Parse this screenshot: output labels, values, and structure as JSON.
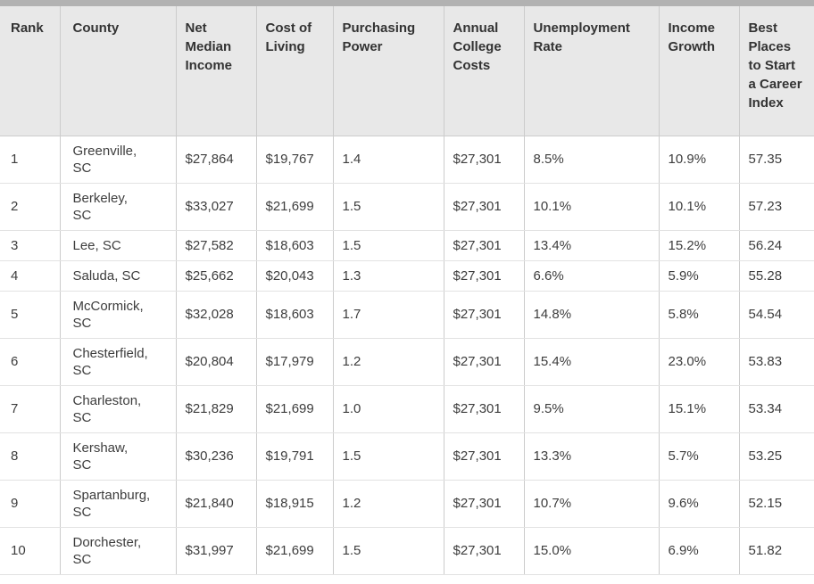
{
  "chart_data": {
    "type": "table",
    "columns": [
      "Rank",
      "County",
      "Net Median Income",
      "Cost of Living",
      "Purchasing Power",
      "Annual College Costs",
      "Unemployment Rate",
      "Income Growth",
      "Best Places to Start a Career Index"
    ],
    "column_keys": [
      "rank",
      "county",
      "net-median-income",
      "cost-of-living",
      "purchasing-power",
      "annual-college-costs",
      "unemployment-rate",
      "income-growth",
      "best-places-index"
    ],
    "rows": [
      [
        "1",
        "Greenville,\nSC",
        "$27,864",
        "$19,767",
        "1.4",
        "$27,301",
        "8.5%",
        "10.9%",
        "57.35"
      ],
      [
        "2",
        "Berkeley,\nSC",
        "$33,027",
        "$21,699",
        "1.5",
        "$27,301",
        "10.1%",
        "10.1%",
        "57.23"
      ],
      [
        "3",
        "Lee, SC",
        "$27,582",
        "$18,603",
        "1.5",
        "$27,301",
        "13.4%",
        "15.2%",
        "56.24"
      ],
      [
        "4",
        "Saluda, SC",
        "$25,662",
        "$20,043",
        "1.3",
        "$27,301",
        "6.6%",
        "5.9%",
        "55.28"
      ],
      [
        "5",
        "McCormick,\nSC",
        "$32,028",
        "$18,603",
        "1.7",
        "$27,301",
        "14.8%",
        "5.8%",
        "54.54"
      ],
      [
        "6",
        "Chesterfield,\nSC",
        "$20,804",
        "$17,979",
        "1.2",
        "$27,301",
        "15.4%",
        "23.0%",
        "53.83"
      ],
      [
        "7",
        "Charleston,\nSC",
        "$21,829",
        "$21,699",
        "1.0",
        "$27,301",
        "9.5%",
        "15.1%",
        "53.34"
      ],
      [
        "8",
        "Kershaw,\nSC",
        "$30,236",
        "$19,791",
        "1.5",
        "$27,301",
        "13.3%",
        "5.7%",
        "53.25"
      ],
      [
        "9",
        "Spartanburg,\nSC",
        "$21,840",
        "$18,915",
        "1.2",
        "$27,301",
        "10.7%",
        "9.6%",
        "52.15"
      ],
      [
        "10",
        "Dorchester,\nSC",
        "$31,997",
        "$21,699",
        "1.5",
        "$27,301",
        "15.0%",
        "6.9%",
        "51.82"
      ]
    ]
  },
  "colors": {
    "top_strip": "#b2b2b2",
    "header_bg": "#e8e8e8",
    "divider": "#cccccc",
    "row_border": "#e2e2e2",
    "header_text": "#333333",
    "body_text": "#3d3d3d"
  }
}
